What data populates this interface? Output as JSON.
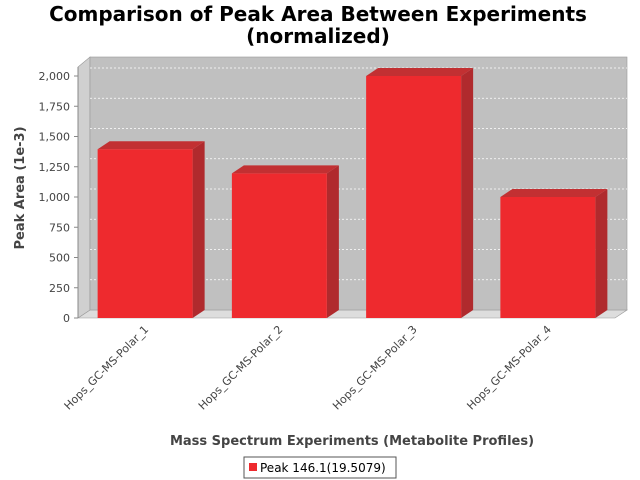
{
  "chart_data": {
    "type": "bar",
    "title_lines": [
      "Comparison of Peak Area Between Experiments",
      "(normalized)"
    ],
    "xlabel": "Mass Spectrum Experiments (Metabolite Profiles)",
    "ylabel": "Peak Area (1e-3)",
    "categories": [
      "Hops_GC-MS-Polar_1",
      "Hops_GC-MS-Polar_2",
      "Hops_GC-MS-Polar_3",
      "Hops_GC-MS-Polar_4"
    ],
    "series": [
      {
        "name": "Peak 146.1(19.5079)",
        "values": [
          1395,
          1195,
          2000,
          1000
        ],
        "color": "#ee2a2e"
      }
    ],
    "ylim": [
      0,
      2000
    ],
    "yticks": [
      0,
      250,
      500,
      750,
      1000,
      1250,
      1500,
      1750,
      2000
    ],
    "ytick_labels": [
      "0",
      "250",
      "500",
      "750",
      "1,000",
      "1,250",
      "1,500",
      "1,750",
      "2,000"
    ],
    "grid": true,
    "legend_position": "bottom",
    "colors": {
      "plot_background": "#c0c0c0",
      "gridline": "#ffffff",
      "bar_front": "#ee2a2e",
      "bar_side": "#b02a2d",
      "bar_top": "#c23032"
    }
  }
}
